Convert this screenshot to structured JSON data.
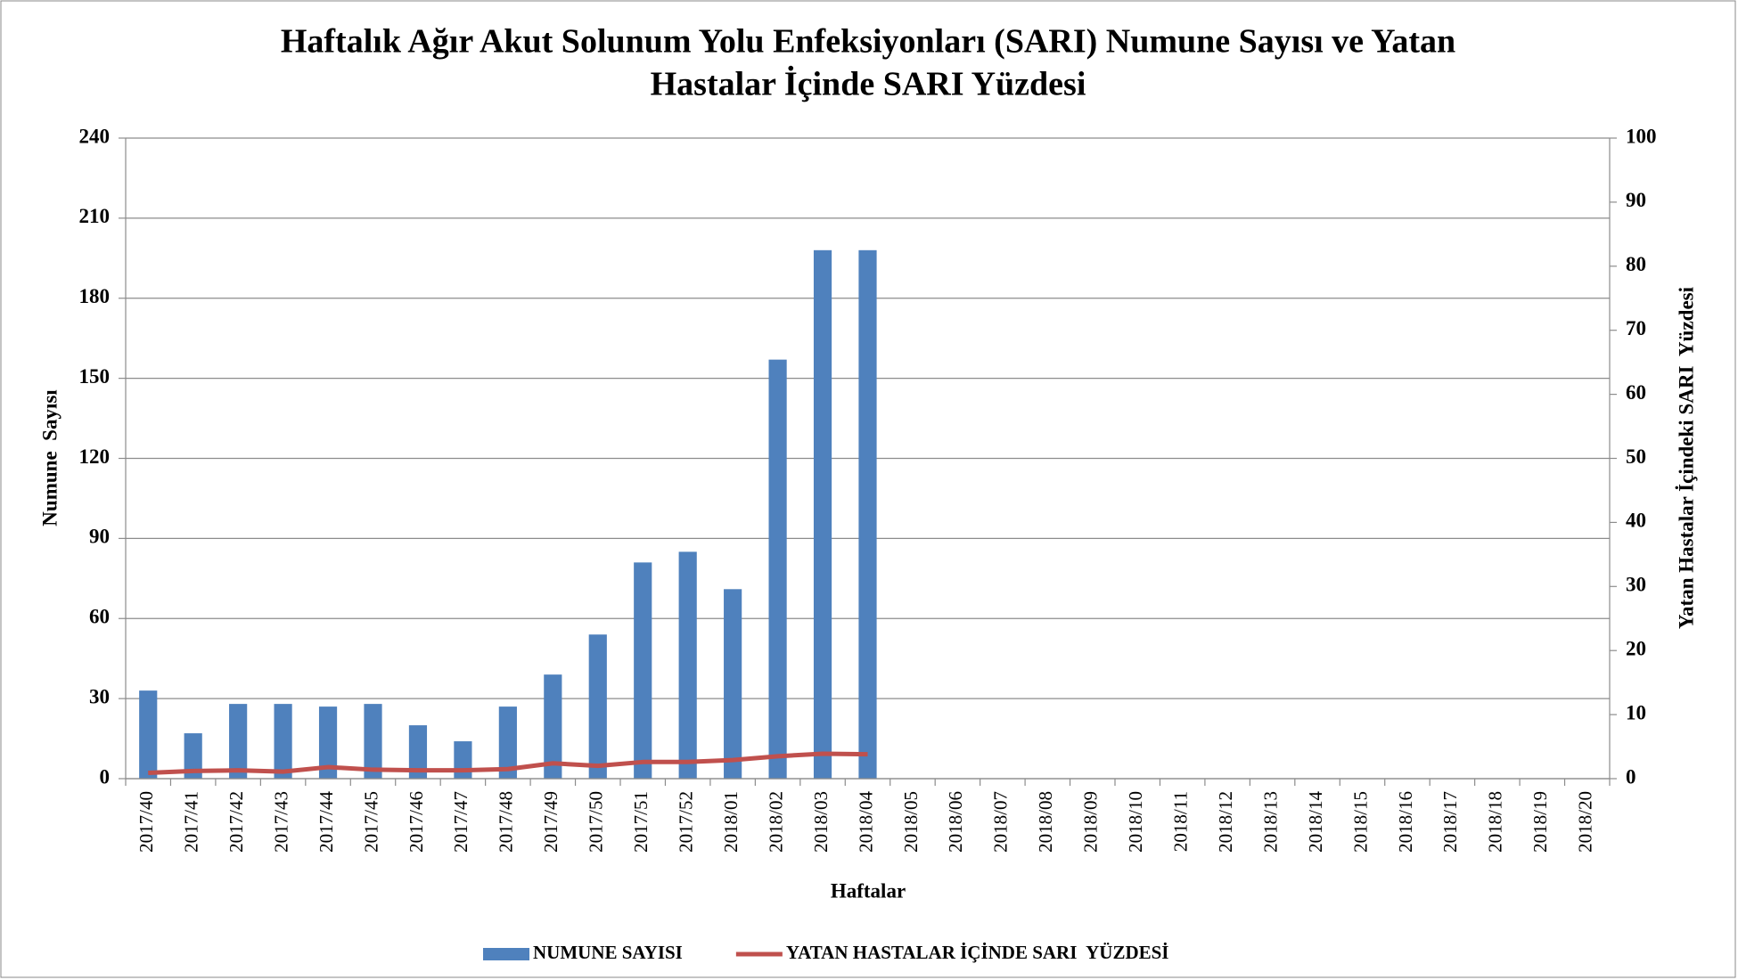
{
  "chart_data": {
    "type": "bar",
    "title": [
      "Haftalık Ağır Akut Solunum Yolu Enfeksiyonları (SARI) Numune Sayısı ve Yatan",
      "Hastalar İçinde SARI Yüzdesi"
    ],
    "x_label": "Haftalar",
    "y_label": "Numune  Sayısı",
    "y2_label": "Yatan Hastalar İçindeki SARI  Yüzdesi",
    "categories": [
      "2017/40",
      "2017/41",
      "2017/42",
      "2017/43",
      "2017/44",
      "2017/45",
      "2017/46",
      "2017/47",
      "2017/48",
      "2017/49",
      "2017/50",
      "2017/51",
      "2017/52",
      "2018/01",
      "2018/02",
      "2018/03",
      "2018/04",
      "2018/05",
      "2018/06",
      "2018/07",
      "2018/08",
      "2018/09",
      "2018/10",
      "2018/11",
      "2018/12",
      "2018/13",
      "2018/14",
      "2018/15",
      "2018/16",
      "2018/17",
      "2018/18",
      "2018/19",
      "2018/20"
    ],
    "series": [
      {
        "name": "NUMUNE SAYISI",
        "type": "bar",
        "color": "#4f81bd",
        "axis": "y",
        "values": [
          33,
          17,
          28,
          28,
          27,
          28,
          20,
          14,
          27,
          39,
          54,
          81,
          85,
          71,
          157,
          198,
          198,
          null,
          null,
          null,
          null,
          null,
          null,
          null,
          null,
          null,
          null,
          null,
          null,
          null,
          null,
          null,
          null
        ]
      },
      {
        "name": "YATAN HASTALAR İÇİNDE SARI  YÜZDESİ",
        "type": "line",
        "color": "#c0504d",
        "axis": "y2",
        "values": [
          0.9,
          1.2,
          1.3,
          1.1,
          1.8,
          1.4,
          1.3,
          1.3,
          1.5,
          2.4,
          2.0,
          2.6,
          2.6,
          2.9,
          3.5,
          3.9,
          3.8,
          null,
          null,
          null,
          null,
          null,
          null,
          null,
          null,
          null,
          null,
          null,
          null,
          null,
          null,
          null,
          null
        ]
      }
    ],
    "ylim": [
      0,
      240
    ],
    "yticks": [
      0,
      30,
      60,
      90,
      120,
      150,
      180,
      210,
      240
    ],
    "y2lim": [
      0,
      100
    ],
    "y2ticks": [
      0,
      10,
      20,
      30,
      40,
      50,
      60,
      70,
      80,
      90,
      100
    ],
    "grid": true,
    "legend": "bottom"
  }
}
